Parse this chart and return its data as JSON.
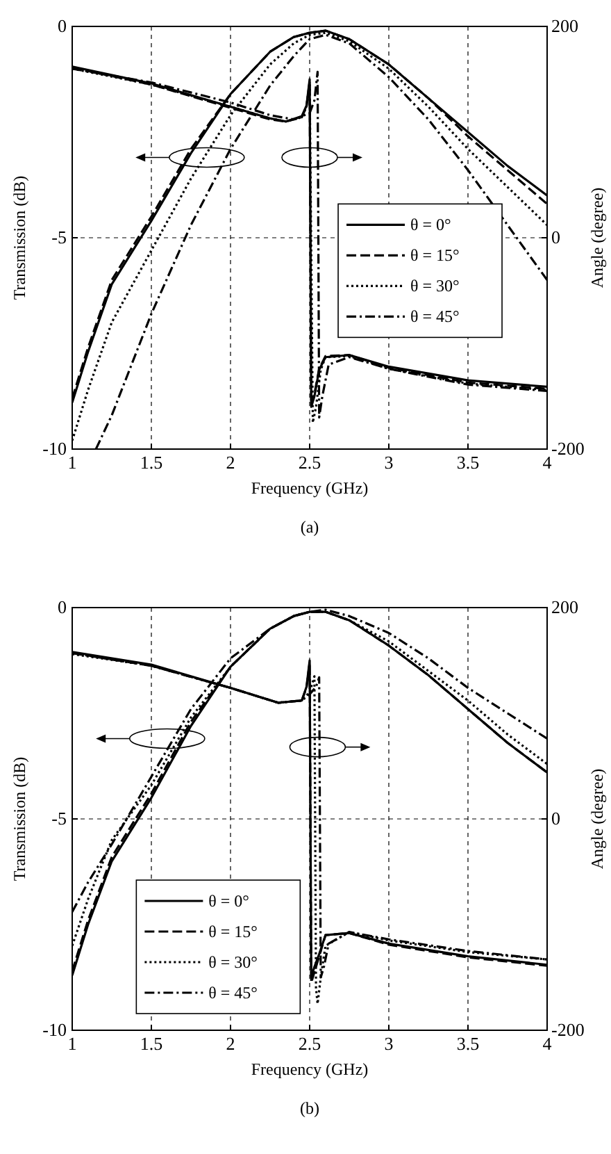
{
  "chart_data": [
    {
      "type": "line",
      "xlabel": "Frequency (GHz)",
      "ylabel": "Transmission (dB)",
      "y2label": "Angle (degree)",
      "xlim": [
        1,
        4
      ],
      "xticks": [
        1,
        1.5,
        2,
        2.5,
        3,
        3.5,
        4
      ],
      "ylim": [
        -10,
        0
      ],
      "yticks": [
        -10,
        -5,
        0
      ],
      "y2lim": [
        -200,
        200
      ],
      "y2ticks": [
        -200,
        0,
        200
      ],
      "grid": true,
      "legend": "right",
      "annotations": [
        "(a)"
      ],
      "series": [
        {
          "name": "θ = 0°",
          "color": "#000000",
          "line_style": "solid",
          "x": [
            1,
            1.1,
            1.25,
            1.5,
            1.75,
            2,
            2.25,
            2.4,
            2.5,
            2.6,
            2.75,
            3,
            3.25,
            3.5,
            3.75,
            4
          ],
          "values": [
            -8.9,
            -7.7,
            -6.1,
            -4.6,
            -3.0,
            -1.6,
            -0.6,
            -0.25,
            -0.15,
            -0.1,
            -0.3,
            -0.9,
            -1.7,
            -2.5,
            -3.3,
            -4.0
          ]
        },
        {
          "name": "θ = 15°",
          "color": "#000000",
          "line_style": "dashed",
          "x": [
            1,
            1.1,
            1.25,
            1.5,
            1.75,
            2,
            2.25,
            2.4,
            2.5,
            2.6,
            2.75,
            3,
            3.25,
            3.5,
            3.75,
            4
          ],
          "values": [
            -8.8,
            -7.6,
            -6.0,
            -4.5,
            -2.9,
            -1.6,
            -0.6,
            -0.25,
            -0.15,
            -0.1,
            -0.3,
            -0.9,
            -1.7,
            -2.6,
            -3.4,
            -4.2
          ]
        },
        {
          "name": "θ = 30°",
          "color": "#000000",
          "line_style": "dotted",
          "x": [
            1,
            1.1,
            1.25,
            1.5,
            1.75,
            2,
            2.25,
            2.4,
            2.5,
            2.6,
            2.75,
            3,
            3.25,
            3.5,
            3.75,
            4
          ],
          "values": [
            -9.8,
            -8.6,
            -7.0,
            -5.3,
            -3.6,
            -2.1,
            -0.9,
            -0.4,
            -0.2,
            -0.15,
            -0.35,
            -1.0,
            -1.9,
            -2.9,
            -3.8,
            -4.7
          ]
        },
        {
          "name": "θ = 45°",
          "color": "#000000",
          "line_style": "dashdot",
          "x": [
            1.15,
            1.25,
            1.5,
            1.75,
            2,
            2.25,
            2.4,
            2.5,
            2.6,
            2.75,
            3,
            3.25,
            3.5,
            3.75,
            4
          ],
          "values": [
            -10,
            -9.2,
            -6.8,
            -4.7,
            -2.9,
            -1.4,
            -0.7,
            -0.3,
            -0.2,
            -0.4,
            -1.2,
            -2.2,
            -3.4,
            -4.7,
            -6.0
          ]
        },
        {
          "color": "#000000",
          "line_style": "solid",
          "axis": "y2",
          "x": [
            1,
            1.5,
            2,
            2.25,
            2.35,
            2.45,
            2.48,
            2.5,
            2.51,
            2.53,
            2.56,
            2.6,
            2.75,
            3,
            3.5,
            4
          ],
          "values": [
            162,
            146,
            124,
            113,
            110,
            115,
            125,
            150,
            -160,
            -150,
            -125,
            -113,
            -111,
            -122,
            -135,
            -141
          ]
        },
        {
          "color": "#000000",
          "line_style": "dashed",
          "axis": "y2",
          "x": [
            1,
            1.5,
            2,
            2.25,
            2.35,
            2.45,
            2.48,
            2.5,
            2.51,
            2.53,
            2.56,
            2.6,
            2.75,
            3,
            3.5,
            4
          ],
          "values": [
            161,
            145,
            123,
            112,
            110,
            114,
            124,
            148,
            -158,
            -148,
            -124,
            -112,
            -111,
            -123,
            -137,
            -143
          ]
        },
        {
          "color": "#000000",
          "line_style": "dotted",
          "axis": "y2",
          "x": [
            1,
            1.5,
            2,
            2.25,
            2.35,
            2.45,
            2.48,
            2.5,
            2.52,
            2.54,
            2.57,
            2.6,
            2.75,
            3,
            3.5,
            4
          ],
          "values": [
            160,
            145,
            124,
            113,
            110,
            114,
            124,
            146,
            -175,
            -160,
            -125,
            -113,
            -112,
            -124,
            -138,
            -144
          ]
        },
        {
          "color": "#000000",
          "line_style": "dashdot",
          "axis": "y2",
          "x": [
            1,
            1.5,
            2,
            2.25,
            2.4,
            2.5,
            2.53,
            2.55,
            2.56,
            2.58,
            2.62,
            2.75,
            3,
            3.5,
            4
          ],
          "values": [
            160,
            147,
            128,
            116,
            112,
            118,
            130,
            157,
            -170,
            -150,
            -120,
            -113,
            -124,
            -139,
            -145
          ]
        }
      ]
    },
    {
      "type": "line",
      "xlabel": "Frequency (GHz)",
      "ylabel": "Transmission (dB)",
      "y2label": "Angle (degree)",
      "xlim": [
        1,
        4
      ],
      "xticks": [
        1,
        1.5,
        2,
        2.5,
        3,
        3.5,
        4
      ],
      "ylim": [
        -10,
        0
      ],
      "yticks": [
        -10,
        -5,
        0
      ],
      "y2lim": [
        -200,
        200
      ],
      "y2ticks": [
        -200,
        0,
        200
      ],
      "grid": true,
      "legend": "bottom left",
      "annotations": [
        "(b)"
      ],
      "series": [
        {
          "name": "θ = 0°",
          "color": "#000000",
          "line_style": "solid",
          "x": [
            1,
            1.1,
            1.25,
            1.5,
            1.75,
            2,
            2.25,
            2.4,
            2.5,
            2.6,
            2.75,
            3,
            3.25,
            3.5,
            3.75,
            4
          ],
          "values": [
            -8.7,
            -7.5,
            -6.0,
            -4.5,
            -2.8,
            -1.4,
            -0.5,
            -0.2,
            -0.1,
            -0.1,
            -0.3,
            -0.9,
            -1.6,
            -2.4,
            -3.2,
            -3.9
          ]
        },
        {
          "name": "θ = 15°",
          "color": "#000000",
          "line_style": "dashed",
          "x": [
            1,
            1.1,
            1.25,
            1.5,
            1.75,
            2,
            2.25,
            2.4,
            2.5,
            2.6,
            2.75,
            3,
            3.25,
            3.5,
            3.75,
            4
          ],
          "values": [
            -8.6,
            -7.4,
            -5.9,
            -4.4,
            -2.7,
            -1.4,
            -0.5,
            -0.2,
            -0.1,
            -0.1,
            -0.3,
            -0.9,
            -1.6,
            -2.4,
            -3.2,
            -3.9
          ]
        },
        {
          "name": "θ = 30°",
          "color": "#000000",
          "line_style": "dotted",
          "x": [
            1,
            1.1,
            1.25,
            1.5,
            1.75,
            2,
            2.25,
            2.4,
            2.5,
            2.6,
            2.75,
            3,
            3.25,
            3.5,
            3.75,
            4
          ],
          "values": [
            -8.0,
            -6.9,
            -5.5,
            -4.2,
            -2.6,
            -1.4,
            -0.5,
            -0.2,
            -0.1,
            -0.1,
            -0.3,
            -0.8,
            -1.5,
            -2.2,
            -3.0,
            -3.7
          ]
        },
        {
          "name": "θ = 45°",
          "color": "#000000",
          "line_style": "dashdot",
          "x": [
            1,
            1.1,
            1.25,
            1.5,
            1.75,
            2,
            2.25,
            2.4,
            2.5,
            2.6,
            2.75,
            3,
            3.25,
            3.5,
            3.75,
            4
          ],
          "values": [
            -7.2,
            -6.5,
            -5.6,
            -4.0,
            -2.4,
            -1.2,
            -0.5,
            -0.2,
            -0.1,
            -0.05,
            -0.2,
            -0.6,
            -1.2,
            -1.9,
            -2.5,
            -3.1
          ]
        },
        {
          "color": "#000000",
          "line_style": "solid",
          "axis": "y2",
          "x": [
            1,
            1.5,
            2,
            2.3,
            2.45,
            2.48,
            2.5,
            2.51,
            2.53,
            2.56,
            2.6,
            2.75,
            3,
            3.5,
            4
          ],
          "values": [
            158,
            146,
            124,
            110,
            112,
            125,
            150,
            -150,
            -140,
            -128,
            -110,
            -108,
            -118,
            -130,
            -138
          ]
        },
        {
          "color": "#000000",
          "line_style": "dashed",
          "axis": "y2",
          "x": [
            1,
            1.5,
            2,
            2.3,
            2.45,
            2.48,
            2.5,
            2.51,
            2.53,
            2.56,
            2.6,
            2.75,
            3,
            3.5,
            4
          ],
          "values": [
            157,
            145,
            124,
            110,
            112,
            124,
            148,
            -155,
            -145,
            -130,
            -110,
            -108,
            -119,
            -131,
            -139
          ]
        },
        {
          "color": "#000000",
          "line_style": "dotted",
          "axis": "y2",
          "x": [
            1,
            1.5,
            2,
            2.3,
            2.45,
            2.5,
            2.53,
            2.54,
            2.55,
            2.57,
            2.6,
            2.75,
            3,
            3.5,
            4
          ],
          "values": [
            156,
            145,
            124,
            110,
            112,
            120,
            135,
            -160,
            -175,
            -150,
            -120,
            -107,
            -115,
            -126,
            -133
          ]
        },
        {
          "color": "#000000",
          "line_style": "dashdot",
          "axis": "y2",
          "x": [
            1,
            1.5,
            2,
            2.3,
            2.45,
            2.5,
            2.54,
            2.56,
            2.57,
            2.59,
            2.62,
            2.75,
            3,
            3.5,
            4
          ],
          "values": [
            157,
            145,
            124,
            110,
            112,
            118,
            125,
            134,
            -150,
            -140,
            -118,
            -107,
            -114,
            -125,
            -133
          ]
        }
      ]
    }
  ]
}
